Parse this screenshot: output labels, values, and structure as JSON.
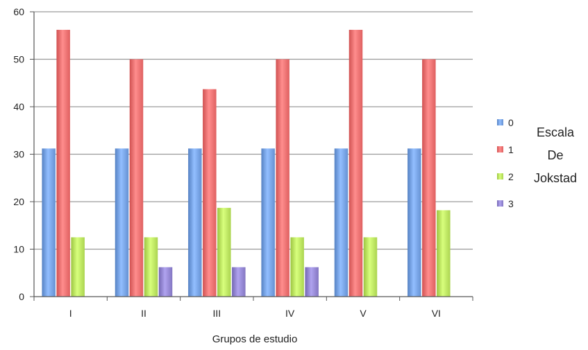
{
  "chart_data": {
    "type": "bar",
    "title": "",
    "xlabel": "Grupos de estudio",
    "ylabel": "",
    "ylim": [
      0,
      60
    ],
    "yticks": [
      0,
      10,
      20,
      30,
      40,
      50,
      60
    ],
    "grid": true,
    "categories": [
      "I",
      "II",
      "III",
      "IV",
      "V",
      "VI"
    ],
    "series": [
      {
        "name": "0",
        "color": "#6f9bdc",
        "values": [
          31.2,
          31.2,
          31.2,
          31.2,
          31.2,
          31.2
        ]
      },
      {
        "name": "1",
        "color": "#e96a6a",
        "values": [
          56.2,
          50,
          43.7,
          50,
          56.2,
          50
        ]
      },
      {
        "name": "2",
        "color": "#b5de5a",
        "values": [
          12.5,
          12.5,
          18.7,
          12.5,
          12.5,
          18.2
        ]
      },
      {
        "name": "3",
        "color": "#8d80cc",
        "values": [
          0,
          6.2,
          6.2,
          6.2,
          0,
          0
        ]
      }
    ],
    "legend": {
      "placement": "right",
      "title_lines": [
        "Escala",
        "De",
        "Jokstad"
      ]
    }
  }
}
